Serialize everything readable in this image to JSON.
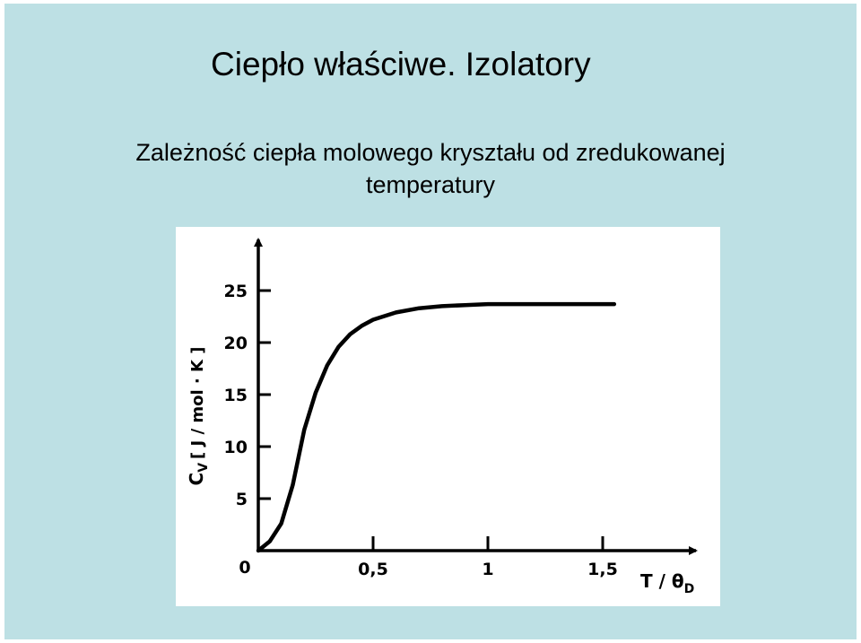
{
  "slide": {
    "title": "Ciepło właściwe. Izolatory",
    "subtitle_line1": "Zależność ciepła molowego kryształu od zredukowanej",
    "subtitle_line2": "temperatury",
    "background_color": "#bde0e4"
  },
  "chart_data": {
    "type": "line",
    "title": "",
    "xlabel": "T / θ",
    "xlabel_subscript": "D",
    "ylabel": "C",
    "ylabel_subscript": "V",
    "ylabel_units": "[ J / mol · K ]",
    "xlim": [
      0,
      1.9
    ],
    "ylim": [
      0,
      27
    ],
    "x_ticks": [
      0.5,
      1,
      1.5
    ],
    "x_tick_labels": [
      "0,5",
      "1",
      "1,5"
    ],
    "y_ticks": [
      5,
      10,
      15,
      20,
      25
    ],
    "y_tick_labels": [
      "5",
      "10",
      "15",
      "20",
      "25"
    ],
    "origin_label": "0",
    "grid": false,
    "series": [
      {
        "x": [
          0,
          0.05,
          0.1,
          0.15,
          0.2,
          0.25,
          0.3,
          0.35,
          0.4,
          0.45,
          0.5,
          0.6,
          0.7,
          0.8,
          0.9,
          1.0,
          1.2,
          1.4,
          1.55
        ],
        "y": [
          0,
          0.9,
          2.6,
          6.3,
          11.6,
          15.2,
          17.8,
          19.6,
          20.8,
          21.6,
          22.2,
          22.9,
          23.3,
          23.5,
          23.6,
          23.7,
          23.7,
          23.7,
          23.7
        ]
      }
    ]
  }
}
